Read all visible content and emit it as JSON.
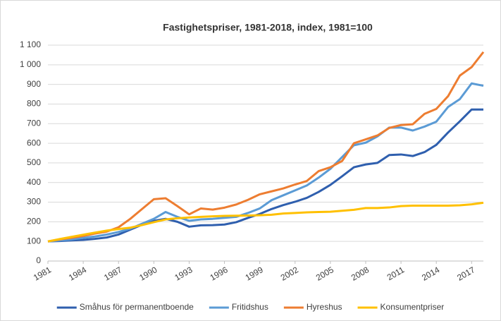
{
  "chart_data": {
    "type": "line",
    "title": "Fastighetspriser, 1981-2018, index, 1981=100",
    "x": [
      1981,
      1982,
      1983,
      1984,
      1985,
      1986,
      1987,
      1988,
      1989,
      1990,
      1991,
      1992,
      1993,
      1994,
      1995,
      1996,
      1997,
      1998,
      1999,
      2000,
      2001,
      2002,
      2003,
      2004,
      2005,
      2006,
      2007,
      2008,
      2009,
      2010,
      2011,
      2012,
      2013,
      2014,
      2015,
      2016,
      2017,
      2018
    ],
    "xlim": [
      1981,
      2018
    ],
    "xticks": [
      1981,
      1984,
      1987,
      1990,
      1993,
      1996,
      1999,
      2002,
      2005,
      2008,
      2011,
      2014,
      2017
    ],
    "ylim": [
      0,
      1100
    ],
    "yticks": [
      0,
      100,
      200,
      300,
      400,
      500,
      600,
      700,
      800,
      900,
      {
        "value": 1000,
        "label": "1 000"
      },
      {
        "value": 1100,
        "label": "1 100"
      }
    ],
    "grid": true,
    "legend": "bottom",
    "series": [
      {
        "name": "Småhus för permanentboende",
        "color": "#2f5fae",
        "values": [
          100,
          102,
          105,
          108,
          113,
          120,
          135,
          160,
          185,
          205,
          215,
          200,
          175,
          182,
          183,
          186,
          198,
          220,
          240,
          265,
          285,
          302,
          322,
          352,
          388,
          432,
          478,
          492,
          500,
          540,
          543,
          535,
          555,
          592,
          655,
          712,
          772,
          772
        ]
      },
      {
        "name": "Fritidshus",
        "color": "#5b9bd5",
        "values": [
          100,
          105,
          110,
          118,
          125,
          135,
          148,
          165,
          190,
          215,
          250,
          225,
          205,
          212,
          215,
          220,
          225,
          245,
          268,
          310,
          335,
          360,
          385,
          425,
          470,
          530,
          590,
          603,
          635,
          680,
          680,
          665,
          685,
          710,
          785,
          825,
          905,
          893
        ]
      },
      {
        "name": "Hyreshus",
        "color": "#ed7d31",
        "values": [
          100,
          110,
          118,
          128,
          140,
          150,
          172,
          215,
          265,
          315,
          320,
          280,
          238,
          268,
          262,
          272,
          288,
          312,
          340,
          355,
          370,
          390,
          408,
          458,
          478,
          510,
          600,
          620,
          640,
          678,
          693,
          697,
          750,
          775,
          840,
          945,
          988,
          1065
        ]
      },
      {
        "name": "Konsumentpriser",
        "color": "#ffc000",
        "values": [
          100,
          112,
          123,
          134,
          145,
          155,
          163,
          170,
          183,
          198,
          212,
          218,
          222,
          225,
          228,
          230,
          231,
          232,
          233,
          236,
          242,
          245,
          248,
          250,
          251,
          256,
          261,
          270,
          270,
          273,
          280,
          282,
          282,
          282,
          282,
          284,
          289,
          297
        ]
      }
    ]
  }
}
